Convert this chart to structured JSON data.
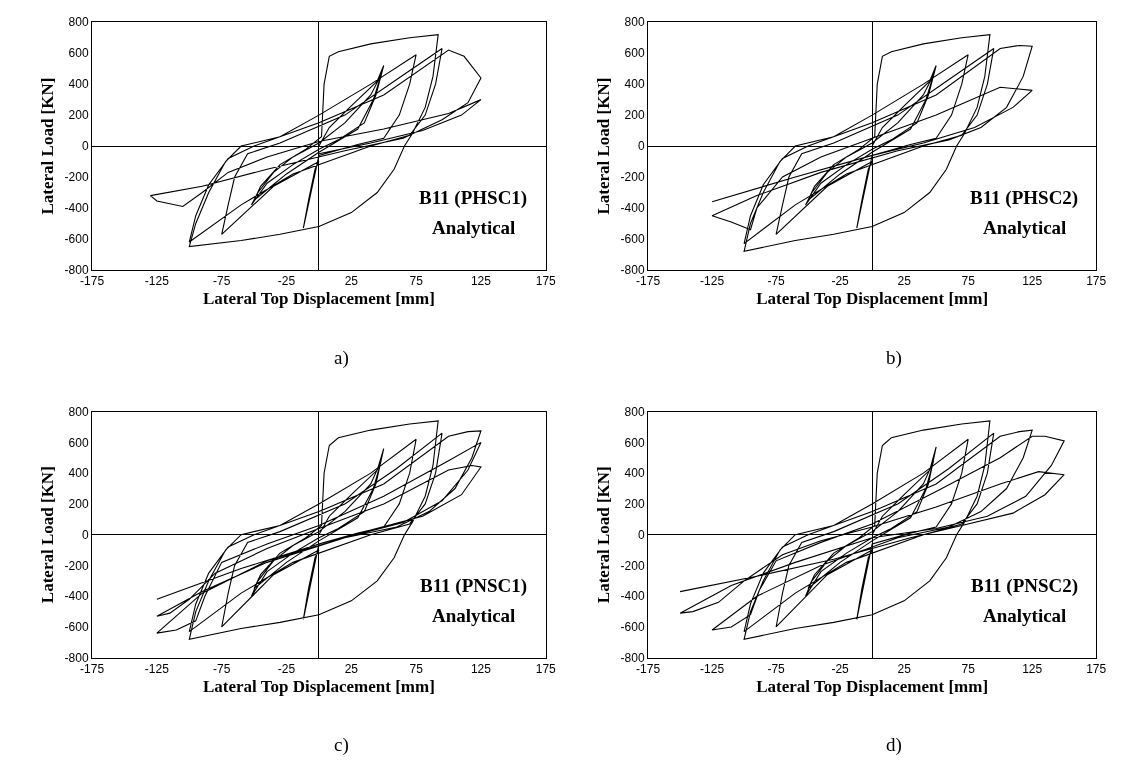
{
  "chart_data": [
    {
      "type": "line",
      "xlabel": "Lateral Top Displacement [mm]",
      "ylabel": "Lateral Load [KN]",
      "xlim": [
        -175,
        175
      ],
      "xticks": [
        -175,
        -125,
        -75,
        -25,
        25,
        75,
        125,
        175
      ],
      "ylim": [
        -800,
        800
      ],
      "yticks": [
        -800,
        -600,
        -400,
        -200,
        0,
        200,
        400,
        600,
        800
      ],
      "annotations": [
        "B11 (PHSC1)",
        "Analytical",
        "a)"
      ],
      "series": [
        {
          "color": "#000000",
          "x": [
            0,
            8,
            25,
            45,
            50,
            44,
            35,
            15,
            0,
            -20,
            -40,
            -52,
            -47,
            -35,
            -20,
            0,
            20,
            40,
            48,
            42,
            30,
            0,
            -25,
            -50,
            -45,
            -30,
            -10,
            2,
            4,
            8,
            15,
            40,
            70,
            92,
            88,
            82,
            72,
            66,
            58,
            45,
            25,
            0,
            -30,
            -60,
            -100,
            -95,
            -85,
            -72,
            -60,
            -30,
            0,
            40,
            75,
            70,
            62,
            50,
            30,
            0,
            -12,
            -8,
            -3,
            0,
            -35,
            -75,
            -70,
            -65,
            -55,
            -30,
            20,
            60,
            95,
            90,
            82,
            70,
            40,
            -20,
            -60,
            -100,
            -95,
            -85,
            -70,
            -50,
            0,
            50,
            100,
            112,
            125,
            115,
            95,
            65,
            20,
            -40,
            -90,
            -130,
            -125,
            -105,
            -90,
            -70,
            -40,
            0,
            50,
            100,
            125,
            110,
            80,
            40,
            0
          ],
          "values": [
            0,
            120,
            260,
            420,
            520,
            330,
            150,
            40,
            -20,
            -120,
            -240,
            -380,
            -300,
            -170,
            -70,
            20,
            150,
            330,
            460,
            300,
            110,
            -40,
            -180,
            -350,
            -260,
            -120,
            -20,
            60,
            400,
            580,
            610,
            660,
            700,
            720,
            450,
            250,
            80,
            0,
            -150,
            -300,
            -430,
            -520,
            -570,
            -610,
            -650,
            -500,
            -300,
            -100,
            0,
            60,
            200,
            400,
            590,
            400,
            200,
            50,
            10,
            -60,
            -530,
            -350,
            -150,
            -100,
            -260,
            -570,
            -380,
            -200,
            -50,
            20,
            200,
            430,
            630,
            400,
            200,
            70,
            0,
            -180,
            -380,
            -620,
            -450,
            -250,
            -80,
            0,
            150,
            330,
            620,
            580,
            440,
            280,
            170,
            50,
            -30,
            -150,
            -260,
            -320,
            -355,
            -390,
            -300,
            -170,
            -70,
            30,
            110,
            210,
            300,
            200,
            100,
            20,
            -50
          ]
        }
      ]
    },
    {
      "type": "line",
      "xlabel": "Lateral Top Displacement [mm]",
      "ylabel": "Lateral Load [KN]",
      "xlim": [
        -175,
        175
      ],
      "xticks": [
        -175,
        -125,
        -75,
        -25,
        25,
        75,
        125,
        175
      ],
      "ylim": [
        -800,
        800
      ],
      "yticks": [
        -800,
        -600,
        -400,
        -200,
        0,
        200,
        400,
        600,
        800
      ],
      "annotations": [
        "B11 (PHSC2)",
        "Analytical",
        "b)"
      ],
      "series": [
        {
          "color": "#000000",
          "x": [
            0,
            8,
            25,
            45,
            50,
            44,
            35,
            15,
            0,
            -20,
            -40,
            -52,
            -47,
            -35,
            -20,
            0,
            20,
            40,
            48,
            42,
            30,
            0,
            -25,
            -50,
            -45,
            -30,
            -10,
            2,
            4,
            8,
            15,
            40,
            70,
            92,
            88,
            82,
            72,
            66,
            58,
            45,
            25,
            0,
            -30,
            -60,
            -100,
            -95,
            -85,
            -72,
            -60,
            -30,
            0,
            40,
            75,
            70,
            62,
            50,
            30,
            0,
            -12,
            -8,
            -3,
            0,
            -35,
            -75,
            -70,
            -65,
            -55,
            -30,
            20,
            60,
            95,
            90,
            82,
            70,
            40,
            -20,
            -60,
            -100,
            -95,
            -85,
            -70,
            -50,
            0,
            50,
            100,
            115,
            125,
            118,
            105,
            85,
            60,
            20,
            -40,
            -90,
            -125,
            -110,
            -95,
            -90,
            -70,
            -40,
            0,
            50,
            100,
            125,
            110,
            80,
            40,
            0,
            -60,
            -125
          ],
          "values": [
            0,
            120,
            260,
            420,
            520,
            330,
            150,
            40,
            -20,
            -120,
            -240,
            -380,
            -300,
            -170,
            -70,
            20,
            150,
            330,
            460,
            300,
            110,
            -40,
            -180,
            -350,
            -260,
            -120,
            -20,
            60,
            400,
            580,
            610,
            660,
            700,
            720,
            450,
            250,
            80,
            0,
            -150,
            -300,
            -430,
            -520,
            -570,
            -610,
            -680,
            -500,
            -300,
            -100,
            0,
            60,
            200,
            400,
            590,
            400,
            200,
            50,
            10,
            -60,
            -530,
            -350,
            -150,
            -100,
            -260,
            -570,
            -380,
            -200,
            -50,
            20,
            200,
            430,
            630,
            400,
            200,
            70,
            0,
            -180,
            -380,
            -630,
            -450,
            -250,
            -80,
            0,
            150,
            330,
            630,
            650,
            645,
            450,
            250,
            120,
            40,
            -30,
            -170,
            -320,
            -450,
            -490,
            -540,
            -400,
            -200,
            -70,
            50,
            200,
            380,
            360,
            250,
            120,
            20,
            -60,
            -200,
            -360
          ]
        }
      ]
    },
    {
      "type": "line",
      "xlabel": "Lateral Top Displacement [mm]",
      "ylabel": "Lateral Load [KN]",
      "xlim": [
        -175,
        175
      ],
      "xticks": [
        -175,
        -125,
        -75,
        -25,
        25,
        75,
        125,
        175
      ],
      "ylim": [
        -800,
        800
      ],
      "yticks": [
        -800,
        -600,
        -400,
        -200,
        0,
        200,
        400,
        600,
        800
      ],
      "annotations": [
        "B11 (PNSC1)",
        "Analytical",
        "c)"
      ],
      "series": [
        {
          "color": "#000000",
          "x": [
            0,
            8,
            25,
            45,
            50,
            44,
            35,
            15,
            0,
            -20,
            -40,
            -52,
            -47,
            -35,
            -20,
            0,
            20,
            40,
            48,
            42,
            30,
            0,
            -25,
            -50,
            -45,
            -30,
            -10,
            2,
            4,
            8,
            15,
            40,
            70,
            92,
            88,
            82,
            72,
            66,
            58,
            45,
            25,
            0,
            -30,
            -60,
            -100,
            -95,
            -85,
            -72,
            -60,
            -30,
            0,
            40,
            75,
            70,
            62,
            50,
            30,
            0,
            -12,
            -8,
            -3,
            0,
            -35,
            -75,
            -70,
            -65,
            -55,
            -30,
            20,
            60,
            95,
            90,
            82,
            70,
            40,
            -20,
            -60,
            -100,
            -95,
            -85,
            -70,
            -50,
            0,
            50,
            100,
            115,
            125,
            118,
            105,
            85,
            60,
            20,
            -40,
            -90,
            -125,
            -110,
            -95,
            -88,
            -75,
            -40,
            0,
            50,
            100,
            125,
            115,
            95,
            65,
            20,
            -40,
            -90,
            -125,
            -115,
            -100,
            -80,
            -40,
            0,
            50,
            100,
            118,
            125,
            110,
            80,
            40,
            0,
            -60,
            -125
          ],
          "values": [
            0,
            120,
            260,
            420,
            560,
            330,
            150,
            40,
            -20,
            -120,
            -240,
            -400,
            -300,
            -170,
            -70,
            20,
            150,
            330,
            480,
            300,
            110,
            -40,
            -180,
            -350,
            -260,
            -120,
            -20,
            60,
            400,
            580,
            630,
            680,
            720,
            740,
            450,
            250,
            80,
            0,
            -150,
            -300,
            -430,
            -520,
            -570,
            -610,
            -680,
            -500,
            -300,
            -100,
            0,
            60,
            200,
            400,
            620,
            400,
            200,
            50,
            10,
            -60,
            -550,
            -350,
            -150,
            -100,
            -260,
            -600,
            -380,
            -200,
            -50,
            20,
            200,
            430,
            660,
            400,
            200,
            70,
            0,
            -180,
            -380,
            -630,
            -450,
            -250,
            -80,
            0,
            150,
            330,
            640,
            670,
            675,
            500,
            300,
            150,
            50,
            -20,
            -170,
            -380,
            -640,
            -620,
            -560,
            -400,
            -180,
            -60,
            60,
            250,
            480,
            600,
            420,
            220,
            80,
            -20,
            -180,
            -370,
            -530,
            -510,
            -420,
            -250,
            -90,
            40,
            200,
            420,
            450,
            440,
            260,
            120,
            30,
            -60,
            -220,
            -420
          ]
        }
      ]
    },
    {
      "type": "line",
      "xlabel": "Lateral Top Displacement [mm]",
      "ylabel": "Lateral Load [KN]",
      "xlim": [
        -175,
        175
      ],
      "xticks": [
        -175,
        -125,
        -75,
        -25,
        25,
        75,
        125,
        175
      ],
      "ylim": [
        -800,
        800
      ],
      "yticks": [
        -800,
        -600,
        -400,
        -200,
        0,
        200,
        400,
        600,
        800
      ],
      "annotations": [
        "B11 (PNSC2)",
        "Analytical",
        "d)"
      ],
      "series": [
        {
          "color": "#000000",
          "x": [
            0,
            8,
            25,
            45,
            50,
            44,
            35,
            15,
            0,
            -20,
            -40,
            -52,
            -47,
            -35,
            -20,
            0,
            20,
            40,
            48,
            42,
            30,
            0,
            -25,
            -50,
            -45,
            -30,
            -10,
            2,
            4,
            8,
            15,
            40,
            70,
            92,
            88,
            82,
            72,
            66,
            58,
            45,
            25,
            0,
            -30,
            -60,
            -100,
            -95,
            -85,
            -72,
            -60,
            -30,
            0,
            40,
            75,
            70,
            62,
            50,
            30,
            0,
            -12,
            -8,
            -3,
            0,
            -35,
            -75,
            -70,
            -65,
            -55,
            -30,
            20,
            60,
            95,
            90,
            82,
            70,
            40,
            -20,
            -60,
            -100,
            -95,
            -85,
            -70,
            -50,
            0,
            50,
            100,
            115,
            125,
            118,
            105,
            85,
            60,
            20,
            -40,
            -90,
            -125,
            -110,
            -95,
            -88,
            -75,
            -40,
            0,
            50,
            100,
            125,
            135,
            150,
            140,
            120,
            90,
            50,
            0,
            -60,
            -110,
            -150,
            -140,
            -120,
            -100,
            -70,
            -40,
            0,
            50,
            100,
            130,
            150,
            135,
            110,
            70,
            30,
            -30,
            -90,
            -150
          ],
          "values": [
            0,
            120,
            260,
            420,
            570,
            330,
            150,
            40,
            -20,
            -120,
            -240,
            -400,
            -300,
            -170,
            -70,
            20,
            150,
            330,
            480,
            300,
            110,
            -40,
            -180,
            -350,
            -260,
            -120,
            -20,
            60,
            400,
            580,
            630,
            680,
            720,
            740,
            450,
            250,
            80,
            0,
            -150,
            -300,
            -430,
            -520,
            -570,
            -610,
            -680,
            -500,
            -300,
            -100,
            0,
            60,
            200,
            400,
            620,
            400,
            200,
            50,
            10,
            -60,
            -550,
            -350,
            -150,
            -100,
            -260,
            -600,
            -380,
            -200,
            -50,
            20,
            200,
            430,
            660,
            400,
            200,
            70,
            0,
            -180,
            -380,
            -630,
            -450,
            -250,
            -80,
            0,
            150,
            330,
            640,
            670,
            680,
            500,
            300,
            150,
            50,
            -20,
            -200,
            -400,
            -620,
            -600,
            -520,
            -360,
            -170,
            -50,
            70,
            280,
            500,
            640,
            640,
            610,
            450,
            250,
            120,
            40,
            -20,
            -180,
            -330,
            -510,
            -500,
            -440,
            -300,
            -130,
            -40,
            50,
            180,
            330,
            410,
            390,
            260,
            140,
            60,
            -20,
            -160,
            -270,
            -370
          ]
        }
      ]
    }
  ]
}
